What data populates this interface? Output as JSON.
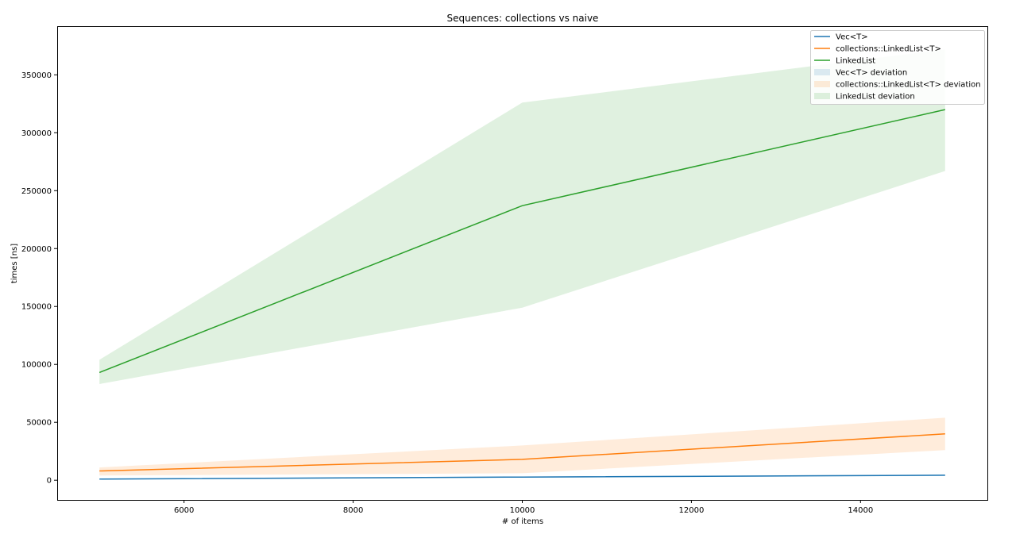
{
  "chart_data": {
    "type": "line",
    "title": "Sequences: collections vs naive",
    "xlabel": "# of items",
    "ylabel": "times [ns]",
    "xlim": [
      4500,
      15500
    ],
    "ylim": [
      -17000,
      392000
    ],
    "xticks": [
      6000,
      8000,
      10000,
      12000,
      14000
    ],
    "yticks": [
      0,
      50000,
      100000,
      150000,
      200000,
      250000,
      300000,
      350000
    ],
    "grid": false,
    "legend_position": "top-right",
    "x": [
      5000,
      10000,
      15000
    ],
    "series": [
      {
        "name": "Vec<T>",
        "color": "#1f77b4",
        "values": [
          1000,
          2700,
          4300
        ],
        "lower": [
          700,
          2200,
          3600
        ],
        "upper": [
          1300,
          3200,
          5000
        ],
        "deviation_name": "Vec<T> deviation"
      },
      {
        "name": "collections::LinkedList<T>",
        "color": "#ff7f0e",
        "values": [
          8000,
          18000,
          40000
        ],
        "lower": [
          4000,
          6000,
          26000
        ],
        "upper": [
          11000,
          30000,
          54000
        ],
        "deviation_name": "collections::LinkedList<T> deviation"
      },
      {
        "name": "LinkedList",
        "color": "#2ca02c",
        "values": [
          93000,
          237000,
          320000
        ],
        "lower": [
          83000,
          149000,
          267000
        ],
        "upper": [
          104000,
          326000,
          372000
        ],
        "deviation_name": "LinkedList deviation"
      }
    ]
  }
}
